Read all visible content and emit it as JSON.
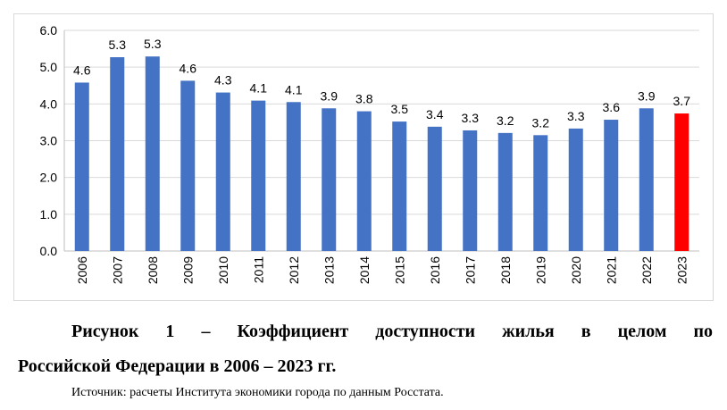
{
  "chart_data": {
    "type": "bar",
    "categories": [
      "2006",
      "2007",
      "2008",
      "2009",
      "2010",
      "2011",
      "2012",
      "2013",
      "2014",
      "2015",
      "2016",
      "2017",
      "2018",
      "2019",
      "2020",
      "2021",
      "2022",
      "2023"
    ],
    "values": [
      4.6,
      5.3,
      5.3,
      4.6,
      4.3,
      4.1,
      4.1,
      3.9,
      3.8,
      3.5,
      3.4,
      3.3,
      3.2,
      3.2,
      3.3,
      3.6,
      3.9,
      3.7
    ],
    "value_labels": [
      "4.6",
      "5.3",
      "5.3",
      "4.6",
      "4.3",
      "4.1",
      "4.1",
      "3.9",
      "3.8",
      "3.5",
      "3.4",
      "3.3",
      "3.2",
      "3.2",
      "3.3",
      "3.6",
      "3.9",
      "3.7"
    ],
    "plotted_values": [
      4.58,
      5.27,
      5.29,
      4.63,
      4.31,
      4.09,
      4.05,
      3.88,
      3.8,
      3.52,
      3.38,
      3.28,
      3.21,
      3.15,
      3.33,
      3.57,
      3.88,
      3.74
    ],
    "ylim": [
      0,
      6
    ],
    "yticks": [
      "0.0",
      "1.0",
      "2.0",
      "3.0",
      "4.0",
      "5.0",
      "6.0"
    ],
    "grid": true,
    "colors": {
      "default_bar": "#4472c4",
      "highlight_bar": "#ff0000",
      "highlight_index": 17,
      "grid": "#d9d9d9"
    },
    "title": "",
    "xlabel": "",
    "ylabel": ""
  },
  "caption": {
    "line1": "Рисунок 1 – Коэффициент доступности жилья в целом по",
    "line2": "Российской Федерации в 2006 – 2023 гг."
  },
  "source": "Источник: расчеты Института экономики города по данным Росстата."
}
